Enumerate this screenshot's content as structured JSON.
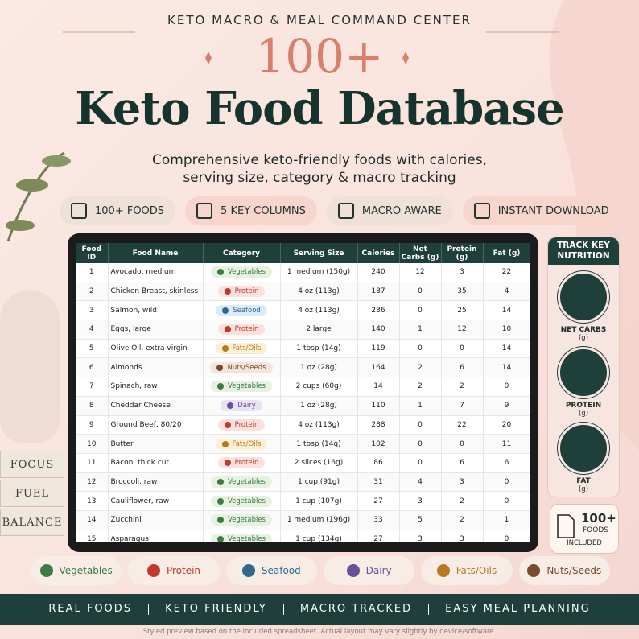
{
  "header": {
    "kicker": "KETO MACRO & MEAL COMMAND CENTER",
    "big": "100+",
    "title": "Keto Food Database",
    "subtitle": [
      "Comprehensive keto-friendly foods with calories,",
      "serving size, category & macro tracking"
    ]
  },
  "badges": [
    "100+ FOODS",
    "5 KEY COLUMNS",
    "MACRO AWARE",
    "INSTANT DOWNLOAD"
  ],
  "table": {
    "columns": [
      "Food ID",
      "Food Name",
      "Category",
      "Serving Size",
      "Calories",
      "Net Carbs (g)",
      "Protein (g)",
      "Fat (g)"
    ],
    "rows": [
      [
        1,
        "Avocado, medium",
        "Vegetables",
        "1 medium (150g)",
        240,
        12,
        3,
        22
      ],
      [
        2,
        "Chicken Breast, skinless",
        "Protein",
        "4 oz (113g)",
        187,
        0,
        35,
        4
      ],
      [
        3,
        "Salmon, wild",
        "Seafood",
        "4 oz (113g)",
        236,
        0,
        25,
        14
      ],
      [
        4,
        "Eggs, large",
        "Protein",
        "2 large",
        140,
        1,
        12,
        10
      ],
      [
        5,
        "Olive Oil, extra virgin",
        "Fats/Oils",
        "1 tbsp (14g)",
        119,
        0,
        0,
        14
      ],
      [
        6,
        "Almonds",
        "Nuts/Seeds",
        "1 oz (28g)",
        164,
        2,
        6,
        14
      ],
      [
        7,
        "Spinach, raw",
        "Vegetables",
        "2 cups (60g)",
        14,
        2,
        2,
        0
      ],
      [
        8,
        "Cheddar Cheese",
        "Dairy",
        "1 oz (28g)",
        110,
        1,
        7,
        9
      ],
      [
        9,
        "Ground Beef, 80/20",
        "Protein",
        "4 oz (113g)",
        288,
        0,
        22,
        20
      ],
      [
        10,
        "Butter",
        "Fats/Oils",
        "1 tbsp (14g)",
        102,
        0,
        0,
        11
      ],
      [
        11,
        "Bacon, thick cut",
        "Protein",
        "2 slices (16g)",
        86,
        0,
        6,
        6
      ],
      [
        12,
        "Broccoli, raw",
        "Vegetables",
        "1 cup (91g)",
        31,
        4,
        3,
        0
      ],
      [
        13,
        "Cauliflower, raw",
        "Vegetables",
        "1 cup (107g)",
        27,
        3,
        2,
        0
      ],
      [
        14,
        "Zucchini",
        "Vegetables",
        "1 medium (196g)",
        33,
        5,
        2,
        1
      ],
      [
        15,
        "Asparagus",
        "Vegetables",
        "1 cup (134g)",
        27,
        3,
        3,
        0
      ]
    ]
  },
  "sidebar": {
    "title": "TRACK KEY NUTRITION",
    "items": [
      {
        "label": "NET CARBS",
        "unit": "(g)"
      },
      {
        "label": "PROTEIN",
        "unit": "(g)"
      },
      {
        "label": "FAT",
        "unit": "(g)"
      }
    ],
    "callout": {
      "count": "100+",
      "label": "FOODS",
      "note": "INCLUDED"
    }
  },
  "books": [
    "FOCUS",
    "FUEL",
    "BALANCE"
  ],
  "legend": [
    {
      "name": "Vegetables",
      "color": "#3f7a45",
      "bg": "#e6f1df"
    },
    {
      "name": "Protein",
      "color": "#c0392b",
      "bg": "#fbe1dd"
    },
    {
      "name": "Seafood",
      "color": "#2d6a8e",
      "bg": "#dcebf5"
    },
    {
      "name": "Dairy",
      "color": "#6a4f9c",
      "bg": "#e9e2f5"
    },
    {
      "name": "Fats/Oils",
      "color": "#b7791f",
      "bg": "#fcf0d4"
    },
    {
      "name": "Nuts/Seeds",
      "color": "#7a4a2a",
      "bg": "#f2e6dc"
    }
  ],
  "banner": [
    "REAL FOODS",
    "KETO FRIENDLY",
    "MACRO TRACKED",
    "EASY MEAL PLANNING"
  ],
  "footnote": "Styled preview based on the included spreadsheet. Actual layout may vary slightly by device/software."
}
